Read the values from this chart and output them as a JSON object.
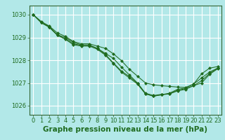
{
  "background_color": "#b2e8e8",
  "grid_color": "#ffffff",
  "line_color": "#1f6b1f",
  "marker_color": "#1f6b1f",
  "xlabel": "Graphe pression niveau de la mer (hPa)",
  "xlabel_fontsize": 7.5,
  "tick_fontsize": 6.0,
  "xlim": [
    -0.5,
    23.5
  ],
  "ylim": [
    1025.6,
    1030.4
  ],
  "yticks": [
    1026,
    1027,
    1028,
    1029,
    1030
  ],
  "xticks": [
    0,
    1,
    2,
    3,
    4,
    5,
    6,
    7,
    8,
    9,
    10,
    11,
    12,
    13,
    14,
    15,
    16,
    17,
    18,
    19,
    20,
    21,
    22,
    23
  ],
  "series": [
    [
      1030.0,
      1029.7,
      1029.5,
      1029.2,
      1029.05,
      1028.82,
      1028.72,
      1028.72,
      1028.62,
      1028.52,
      1028.28,
      1027.98,
      1027.6,
      1027.3,
      1027.0,
      1026.92,
      1026.88,
      1026.85,
      1026.82,
      1026.8,
      1026.95,
      1027.4,
      1027.65,
      1027.72
    ],
    [
      1030.0,
      1029.65,
      1029.48,
      1029.12,
      1029.0,
      1028.78,
      1028.67,
      1028.67,
      1028.52,
      1028.3,
      1028.08,
      1027.7,
      1027.35,
      1027.0,
      1026.55,
      1026.45,
      1026.5,
      1026.52,
      1026.65,
      1026.72,
      1026.88,
      1027.1,
      1027.42,
      1027.65
    ],
    [
      1030.0,
      1029.65,
      1029.45,
      1029.1,
      1028.95,
      1028.72,
      1028.65,
      1028.65,
      1028.52,
      1028.25,
      1027.88,
      1027.52,
      1027.28,
      1026.98,
      1026.52,
      1026.42,
      1026.48,
      1026.55,
      1026.72,
      1026.78,
      1026.95,
      1027.22,
      1027.48,
      1027.65
    ],
    [
      1030.0,
      1029.65,
      1029.45,
      1029.1,
      1028.92,
      1028.68,
      1028.62,
      1028.62,
      1028.48,
      1028.22,
      1027.85,
      1027.48,
      1027.22,
      1026.95,
      1026.52,
      1026.42,
      1026.48,
      1026.52,
      1026.68,
      1026.75,
      1026.88,
      1027.0,
      1027.38,
      1027.62
    ]
  ]
}
